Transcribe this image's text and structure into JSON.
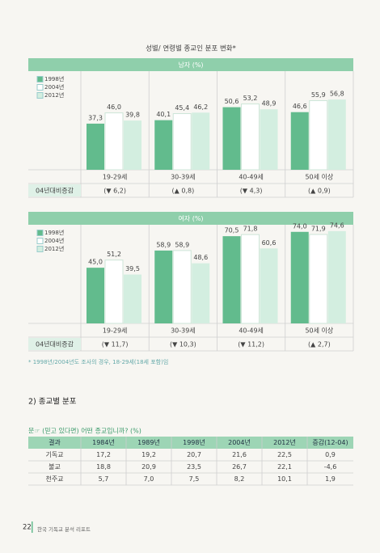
{
  "title": "성별/ 연령별 종교인 분포 변화*",
  "chart_data": [
    {
      "type": "bar",
      "header": "남자 (%)",
      "categories": [
        "19-29세",
        "30-39세",
        "40-49세",
        "50세 이상"
      ],
      "series": [
        {
          "name": "1998년",
          "color": "#62bb8d",
          "values": [
            37.3,
            40.1,
            50.6,
            46.6
          ],
          "value_labels": [
            "37,3",
            "40,1",
            "50,6",
            "46,6"
          ]
        },
        {
          "name": "2004년",
          "color": "#ffffff",
          "values": [
            46.0,
            45.4,
            53.2,
            55.9
          ],
          "value_labels": [
            "46,0",
            "45,4",
            "53,2",
            "55,9"
          ]
        },
        {
          "name": "2012년",
          "color": "#d3eee0",
          "values": [
            39.8,
            46.2,
            48.9,
            56.8
          ],
          "value_labels": [
            "39,8",
            "46,2",
            "48,9",
            "56,8"
          ]
        }
      ],
      "change_label": "04년대비증감",
      "changes": [
        "(▼ 6,2)",
        "(▲ 0,8)",
        "(▼ 4,3)",
        "(▲ 0,9)"
      ]
    },
    {
      "type": "bar",
      "header": "여자 (%)",
      "categories": [
        "19-29세",
        "30-39세",
        "40-49세",
        "50세 이상"
      ],
      "series": [
        {
          "name": "1998년",
          "color": "#62bb8d",
          "values": [
            45.0,
            58.9,
            70.5,
            74.0
          ],
          "value_labels": [
            "45,0",
            "58,9",
            "70,5",
            "74,0"
          ]
        },
        {
          "name": "2004년",
          "color": "#ffffff",
          "values": [
            51.2,
            58.9,
            71.8,
            71.9
          ],
          "value_labels": [
            "51,2",
            "58,9",
            "71,8",
            "71,9"
          ]
        },
        {
          "name": "2012년",
          "color": "#d3eee0",
          "values": [
            39.5,
            48.6,
            60.6,
            74.6
          ],
          "value_labels": [
            "39,5",
            "48,6",
            "60,6",
            "74,6"
          ]
        }
      ],
      "change_label": "04년대비증감",
      "changes": [
        "(▼ 11,7)",
        "(▼ 10,3)",
        "(▼ 11,2)",
        "(▲ 2,7)"
      ]
    }
  ],
  "footnote": "* 1998년/2004년도 조사의 경우, 18-29세(18세 포함)임",
  "section": "2) 종교별 분포",
  "question": "문☞ (믿고 있다면) 어떤 종교입니까? (%)",
  "table": {
    "header": [
      "결과",
      "1984년",
      "1989년",
      "1998년",
      "2004년",
      "2012년",
      "증감(12-04)"
    ],
    "rows": [
      [
        "기독교",
        "17,2",
        "19,2",
        "20,7",
        "21,6",
        "22,5",
        "0,9"
      ],
      [
        "불교",
        "18,8",
        "20,9",
        "23,5",
        "26,7",
        "22,1",
        "-4,6"
      ],
      [
        "천주교",
        "5,7",
        "7,0",
        "7,5",
        "8,2",
        "10,1",
        "1,9"
      ]
    ]
  },
  "footer": {
    "page": "22",
    "text": "한국 기독교 분석 리포트"
  }
}
